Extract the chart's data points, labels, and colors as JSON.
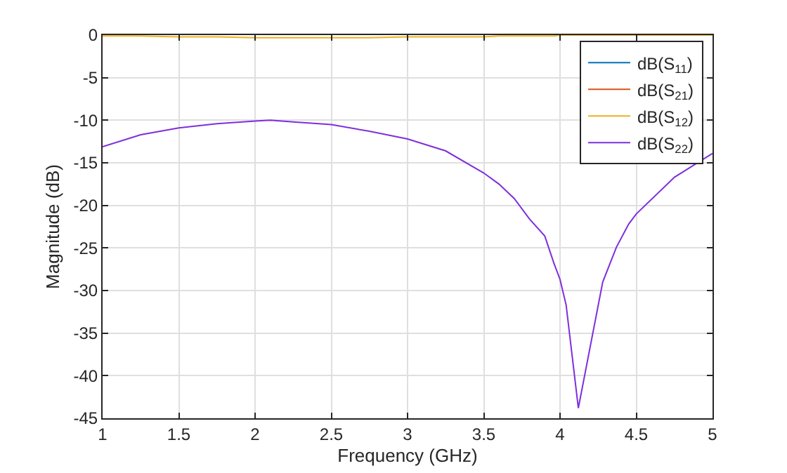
{
  "chart_data": {
    "type": "line",
    "xlabel": "Frequency (GHz)",
    "ylabel": "Magnitude (dB)",
    "xlim": [
      1,
      5
    ],
    "xticks": [
      1,
      1.5,
      2,
      2.5,
      3,
      3.5,
      4,
      4.5,
      5
    ],
    "ylim": [
      -45,
      0
    ],
    "yticks": [
      -45,
      -40,
      -35,
      -30,
      -25,
      -20,
      -15,
      -10,
      -5,
      0
    ],
    "grid": true,
    "legend": "top right",
    "marker": "none",
    "line_style": "solid",
    "x": [
      1,
      1.25,
      1.5,
      1.75,
      2,
      2.1,
      2.25,
      2.5,
      2.75,
      3,
      3.25,
      3.5,
      3.6,
      3.7,
      3.8,
      3.9,
      3.96,
      4,
      4.04,
      4.12,
      4.28,
      4.37,
      4.45,
      4.5,
      4.75,
      5
    ],
    "series": [
      {
        "name": "dB(S$_{11}$)",
        "color": "#0072bd",
        "values": [
          null,
          null,
          null,
          null,
          null,
          null,
          null,
          null,
          null,
          null,
          null,
          null,
          null,
          null,
          null,
          null,
          null,
          null,
          null,
          null,
          null,
          null,
          null,
          null,
          null,
          null
        ]
      },
      {
        "name": "dB(S$_{21}$)",
        "color": "#d95319",
        "values": [
          null,
          null,
          null,
          null,
          null,
          null,
          null,
          null,
          null,
          null,
          null,
          null,
          null,
          null,
          null,
          null,
          null,
          null,
          null,
          null,
          null,
          null,
          null,
          null,
          null,
          null
        ]
      },
      {
        "name": "dB(S$_{12}$)",
        "color": "#edb120",
        "values": [
          -0.1,
          -0.1,
          -0.2,
          -0.2,
          -0.3,
          -0.3,
          -0.3,
          -0.3,
          -0.3,
          -0.2,
          -0.2,
          -0.2,
          -0.1,
          -0.1,
          -0.1,
          -0.1,
          -0.1,
          0,
          0,
          0,
          0,
          0,
          0,
          0,
          0,
          0
        ]
      },
      {
        "name": "dB(S$_{22}$)",
        "color": "#7e2fdc",
        "values": [
          -13.1,
          -11.7,
          -10.9,
          -10.4,
          -10.1,
          -10,
          -10.2,
          -10.5,
          -11.3,
          -12.2,
          -13.6,
          -16.2,
          -17.5,
          -19.2,
          -21.6,
          -23.6,
          -26.8,
          -28.7,
          -31.7,
          -43.8,
          -29,
          -24.9,
          -22.2,
          -21,
          -16.7,
          -13.9
        ]
      }
    ]
  }
}
